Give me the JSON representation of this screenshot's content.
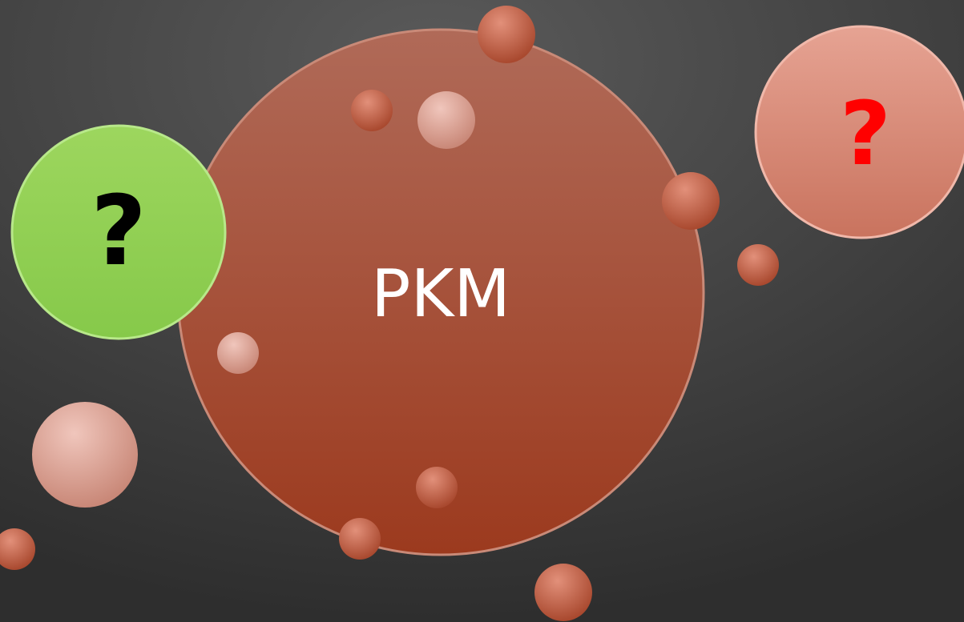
{
  "center": {
    "label": "PKM"
  },
  "left_bubble": {
    "label": "?"
  },
  "right_bubble": {
    "label": "?"
  }
}
